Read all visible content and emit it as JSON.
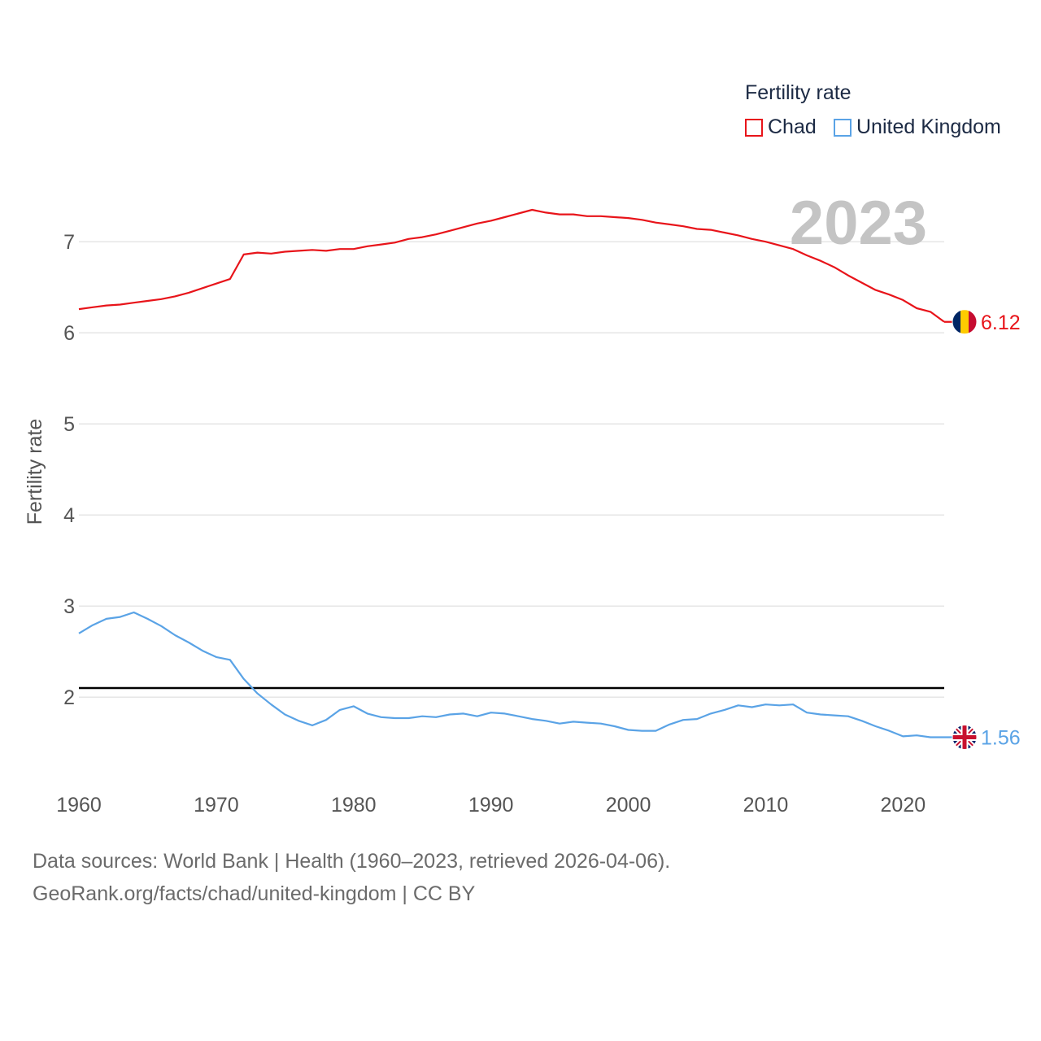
{
  "legend": {
    "title": "Fertility rate",
    "items": [
      {
        "label": "Chad",
        "color": "#e8141a"
      },
      {
        "label": "United Kingdom",
        "color": "#5aa3e6"
      }
    ]
  },
  "footer": {
    "line1": "Data sources: World Bank | Health (1960–2023, retrieved 2026-04-06).",
    "line2": "GeoRank.org/facts/chad/united-kingdom | CC BY"
  },
  "chart_data": {
    "type": "line",
    "year_label": "2023",
    "ylabel": "Fertility rate",
    "xlabel": "",
    "xlim": [
      1960,
      2023
    ],
    "ylim": [
      1.1,
      7.6
    ],
    "x_ticks": [
      1960,
      1970,
      1980,
      1990,
      2000,
      2010,
      2020
    ],
    "y_ticks": [
      2,
      3,
      4,
      5,
      6,
      7
    ],
    "reference_line": 2.1,
    "series": [
      {
        "name": "Chad",
        "color": "#e8141a",
        "end_label": "6.12",
        "flag": "chad-flag-icon",
        "x": [
          1960,
          1961,
          1962,
          1963,
          1964,
          1965,
          1966,
          1967,
          1968,
          1969,
          1970,
          1971,
          1972,
          1973,
          1974,
          1975,
          1976,
          1977,
          1978,
          1979,
          1980,
          1981,
          1982,
          1983,
          1984,
          1985,
          1986,
          1987,
          1988,
          1989,
          1990,
          1991,
          1992,
          1993,
          1994,
          1995,
          1996,
          1997,
          1998,
          1999,
          2000,
          2001,
          2002,
          2003,
          2004,
          2005,
          2006,
          2007,
          2008,
          2009,
          2010,
          2011,
          2012,
          2013,
          2014,
          2015,
          2016,
          2017,
          2018,
          2019,
          2020,
          2021,
          2022,
          2023
        ],
        "values": [
          6.26,
          6.28,
          6.3,
          6.31,
          6.33,
          6.35,
          6.37,
          6.4,
          6.44,
          6.49,
          6.54,
          6.59,
          6.86,
          6.88,
          6.87,
          6.89,
          6.9,
          6.91,
          6.9,
          6.92,
          6.92,
          6.95,
          6.97,
          6.99,
          7.03,
          7.05,
          7.08,
          7.12,
          7.16,
          7.2,
          7.23,
          7.27,
          7.31,
          7.35,
          7.32,
          7.3,
          7.3,
          7.28,
          7.28,
          7.27,
          7.26,
          7.24,
          7.21,
          7.19,
          7.17,
          7.14,
          7.13,
          7.1,
          7.07,
          7.03,
          7.0,
          6.96,
          6.92,
          6.85,
          6.79,
          6.72,
          6.63,
          6.55,
          6.47,
          6.42,
          6.36,
          6.27,
          6.23,
          6.12
        ]
      },
      {
        "name": "United Kingdom",
        "color": "#5aa3e6",
        "end_label": "1.56",
        "flag": "uk-flag-icon",
        "x": [
          1960,
          1961,
          1962,
          1963,
          1964,
          1965,
          1966,
          1967,
          1968,
          1969,
          1970,
          1971,
          1972,
          1973,
          1974,
          1975,
          1976,
          1977,
          1978,
          1979,
          1980,
          1981,
          1982,
          1983,
          1984,
          1985,
          1986,
          1987,
          1988,
          1989,
          1990,
          1991,
          1992,
          1993,
          1994,
          1995,
          1996,
          1997,
          1998,
          1999,
          2000,
          2001,
          2002,
          2003,
          2004,
          2005,
          2006,
          2007,
          2008,
          2009,
          2010,
          2011,
          2012,
          2013,
          2014,
          2015,
          2016,
          2017,
          2018,
          2019,
          2020,
          2021,
          2022,
          2023
        ],
        "values": [
          2.7,
          2.79,
          2.86,
          2.88,
          2.93,
          2.86,
          2.78,
          2.68,
          2.6,
          2.51,
          2.44,
          2.41,
          2.2,
          2.04,
          1.92,
          1.81,
          1.74,
          1.69,
          1.75,
          1.86,
          1.9,
          1.82,
          1.78,
          1.77,
          1.77,
          1.79,
          1.78,
          1.81,
          1.82,
          1.79,
          1.83,
          1.82,
          1.79,
          1.76,
          1.74,
          1.71,
          1.73,
          1.72,
          1.71,
          1.68,
          1.64,
          1.63,
          1.63,
          1.7,
          1.75,
          1.76,
          1.82,
          1.86,
          1.91,
          1.89,
          1.92,
          1.91,
          1.92,
          1.83,
          1.81,
          1.8,
          1.79,
          1.74,
          1.68,
          1.63,
          1.57,
          1.58,
          1.56,
          1.56
        ]
      }
    ]
  }
}
